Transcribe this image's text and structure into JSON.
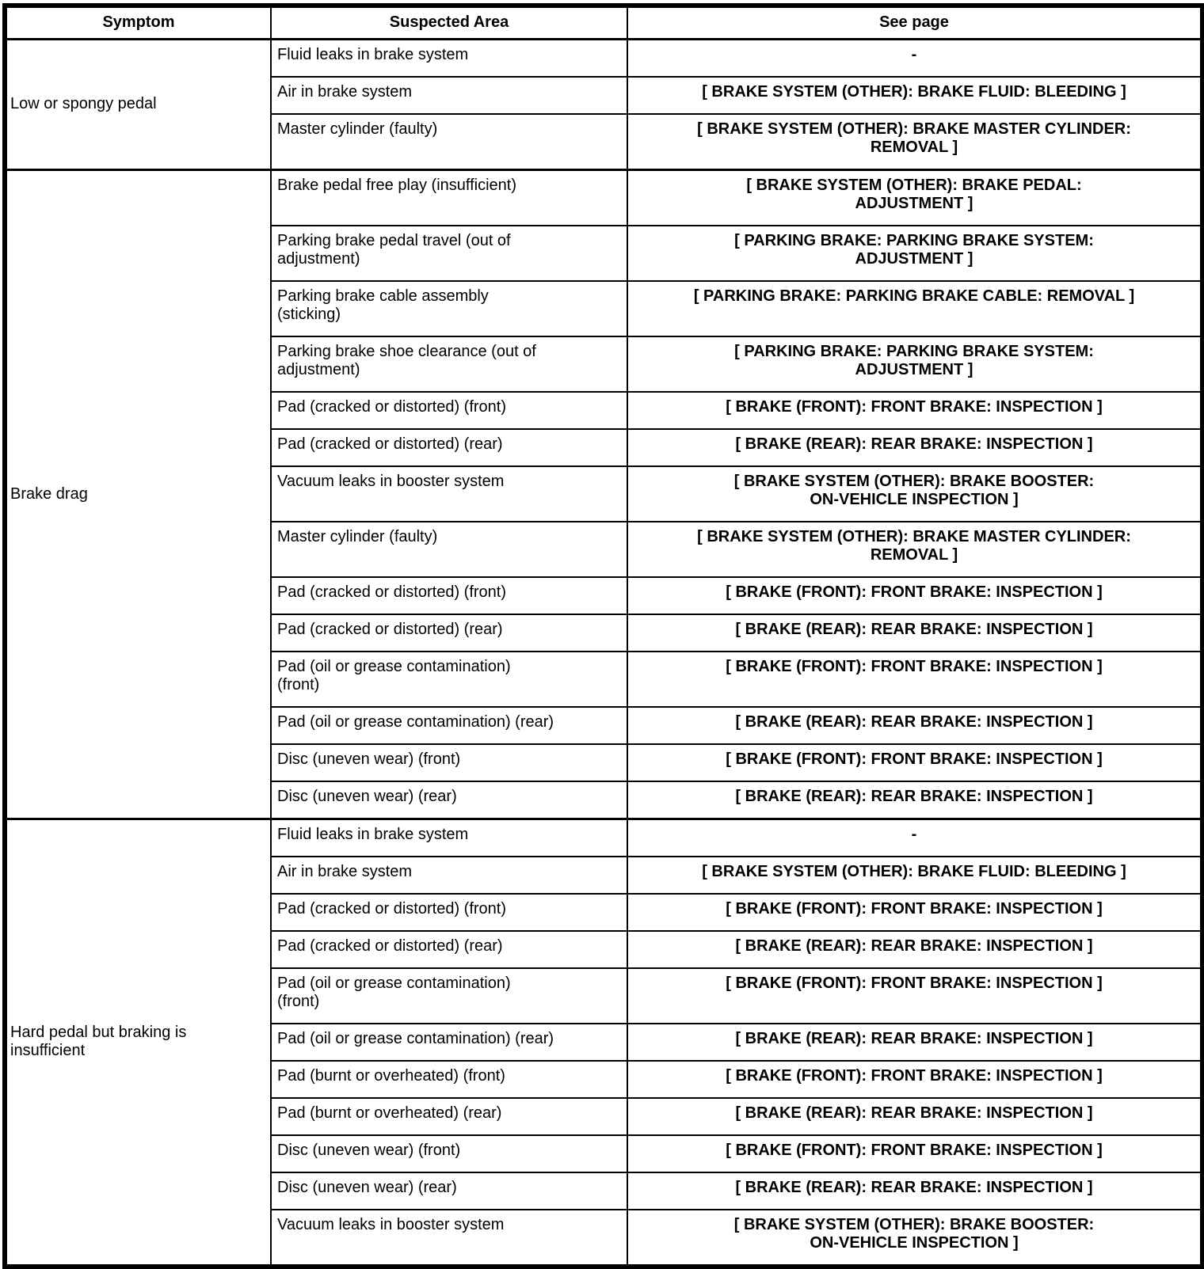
{
  "table": {
    "headers": [
      "Symptom",
      "Suspected Area",
      "See page"
    ],
    "groups": [
      {
        "symptom": "Low or spongy pedal",
        "rows": [
          {
            "area": "Fluid leaks in brake system",
            "page": "-"
          },
          {
            "area": "Air in brake system",
            "page": "[ BRAKE SYSTEM (OTHER): BRAKE FLUID: BLEEDING ]"
          },
          {
            "area": "Master cylinder (faulty)",
            "page": "[ BRAKE SYSTEM (OTHER): BRAKE MASTER CYLINDER:\nREMOVAL ]"
          }
        ]
      },
      {
        "symptom": "Brake drag",
        "rows": [
          {
            "area": "Brake pedal free play (insufficient)",
            "page": "[ BRAKE SYSTEM (OTHER): BRAKE PEDAL:\nADJUSTMENT ]"
          },
          {
            "area": "Parking brake pedal travel (out of\nadjustment)",
            "page": "[ PARKING BRAKE: PARKING BRAKE SYSTEM:\nADJUSTMENT ]"
          },
          {
            "area": "Parking brake cable assembly\n(sticking)",
            "page": "[ PARKING BRAKE: PARKING BRAKE CABLE: REMOVAL ]"
          },
          {
            "area": "Parking brake shoe clearance (out of\nadjustment)",
            "page": "[ PARKING BRAKE: PARKING BRAKE SYSTEM:\nADJUSTMENT ]"
          },
          {
            "area": "Pad (cracked or distorted) (front)",
            "page": "[ BRAKE (FRONT): FRONT BRAKE: INSPECTION ]"
          },
          {
            "area": "Pad (cracked or distorted) (rear)",
            "page": "[ BRAKE (REAR): REAR BRAKE: INSPECTION ]"
          },
          {
            "area": "Vacuum leaks in booster system",
            "page": "[ BRAKE SYSTEM (OTHER): BRAKE BOOSTER:\nON-VEHICLE INSPECTION ]"
          },
          {
            "area": "Master cylinder (faulty)",
            "page": "[ BRAKE SYSTEM (OTHER): BRAKE MASTER CYLINDER:\nREMOVAL ]"
          },
          {
            "area": "Pad (cracked or distorted) (front)",
            "page": "[ BRAKE (FRONT): FRONT BRAKE: INSPECTION ]"
          },
          {
            "area": "Pad (cracked or distorted) (rear)",
            "page": "[ BRAKE (REAR): REAR BRAKE: INSPECTION ]"
          },
          {
            "area": "Pad (oil or grease contamination)\n(front)",
            "page": "[ BRAKE (FRONT): FRONT BRAKE: INSPECTION ]"
          },
          {
            "area": "Pad (oil or grease contamination) (rear)",
            "page": "[ BRAKE (REAR): REAR BRAKE: INSPECTION ]"
          },
          {
            "area": "Disc (uneven wear) (front)",
            "page": "[ BRAKE (FRONT): FRONT BRAKE: INSPECTION ]"
          },
          {
            "area": "Disc (uneven wear) (rear)",
            "page": "[ BRAKE (REAR): REAR BRAKE: INSPECTION ]"
          }
        ]
      },
      {
        "symptom": "Hard pedal but braking is\ninsufficient",
        "rows": [
          {
            "area": "Fluid leaks in brake system",
            "page": "-"
          },
          {
            "area": "Air in brake system",
            "page": "[ BRAKE SYSTEM (OTHER): BRAKE FLUID: BLEEDING ]"
          },
          {
            "area": "Pad (cracked or distorted) (front)",
            "page": "[ BRAKE (FRONT): FRONT BRAKE: INSPECTION ]"
          },
          {
            "area": "Pad (cracked or distorted) (rear)",
            "page": "[ BRAKE (REAR): REAR BRAKE: INSPECTION ]"
          },
          {
            "area": "Pad (oil or grease contamination)\n(front)",
            "page": "[ BRAKE (FRONT): FRONT BRAKE: INSPECTION ]"
          },
          {
            "area": "Pad (oil or grease contamination) (rear)",
            "page": "[ BRAKE (REAR): REAR BRAKE: INSPECTION ]"
          },
          {
            "area": "Pad (burnt or overheated) (front)",
            "page": "[ BRAKE (FRONT): FRONT BRAKE: INSPECTION ]"
          },
          {
            "area": "Pad (burnt or overheated) (rear)",
            "page": "[ BRAKE (REAR): REAR BRAKE: INSPECTION ]"
          },
          {
            "area": "Disc (uneven wear) (front)",
            "page": "[ BRAKE (FRONT): FRONT BRAKE: INSPECTION ]"
          },
          {
            "area": "Disc (uneven wear) (rear)",
            "page": "[ BRAKE (REAR): REAR BRAKE: INSPECTION ]"
          },
          {
            "area": "Vacuum leaks in booster system",
            "page": "[ BRAKE SYSTEM (OTHER): BRAKE BOOSTER:\nON-VEHICLE INSPECTION ]"
          }
        ]
      }
    ]
  }
}
